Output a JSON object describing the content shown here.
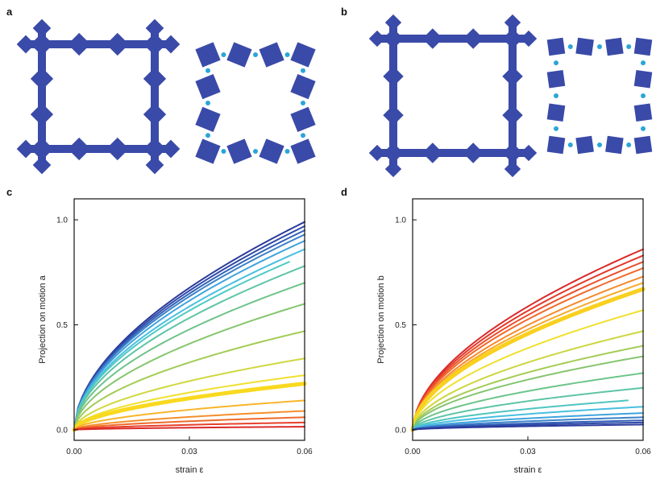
{
  "panels": {
    "a": "a",
    "b": "b",
    "c": "c",
    "d": "d"
  },
  "structure_color": "#3a4aa8",
  "hinge_color": "#2aa6d6",
  "chart_data": [
    {
      "type": "line",
      "panel": "c",
      "title": "",
      "xlabel": "strain  ε",
      "ylabel": "Projection on motion  a",
      "xlim": [
        0.0,
        0.06
      ],
      "ylim": [
        -0.05,
        1.1
      ],
      "xticks": [
        0.0,
        0.03,
        0.06
      ],
      "xtick_labels": [
        "0.00",
        "0.03",
        "0.06"
      ],
      "yticks": [
        0.0,
        0.5,
        1.0
      ],
      "ytick_labels": [
        "0.0",
        "0.5",
        "1.0"
      ],
      "grid": false,
      "series": [
        {
          "color": "#2b3a9b",
          "end_x": 0.06,
          "end_y": 0.99,
          "width": 2
        },
        {
          "color": "#2f4aa8",
          "end_x": 0.06,
          "end_y": 0.97,
          "width": 2
        },
        {
          "color": "#3461b8",
          "end_x": 0.06,
          "end_y": 0.95,
          "width": 2
        },
        {
          "color": "#3b82c9",
          "end_x": 0.06,
          "end_y": 0.93,
          "width": 2
        },
        {
          "color": "#3fa3dc",
          "end_x": 0.06,
          "end_y": 0.9,
          "width": 2
        },
        {
          "color": "#48bfe0",
          "end_x": 0.06,
          "end_y": 0.86,
          "width": 2
        },
        {
          "color": "#4fc9c4",
          "end_x": 0.056,
          "end_y": 0.8,
          "width": 2
        },
        {
          "color": "#5ec4a6",
          "end_x": 0.06,
          "end_y": 0.78,
          "width": 2
        },
        {
          "color": "#6dc48a",
          "end_x": 0.06,
          "end_y": 0.7,
          "width": 2
        },
        {
          "color": "#86c66f",
          "end_x": 0.06,
          "end_y": 0.6,
          "width": 2
        },
        {
          "color": "#a3cc55",
          "end_x": 0.06,
          "end_y": 0.47,
          "width": 2
        },
        {
          "color": "#cfd83f",
          "end_x": 0.06,
          "end_y": 0.34,
          "width": 2
        },
        {
          "color": "#f0e02e",
          "end_x": 0.06,
          "end_y": 0.26,
          "width": 2
        },
        {
          "color": "#f9d91f",
          "end_x": 0.06,
          "end_y": 0.22,
          "width": 5
        },
        {
          "color": "#f8b52a",
          "end_x": 0.06,
          "end_y": 0.14,
          "width": 2
        },
        {
          "color": "#f58f2c",
          "end_x": 0.06,
          "end_y": 0.09,
          "width": 2
        },
        {
          "color": "#ef6a2a",
          "end_x": 0.06,
          "end_y": 0.06,
          "width": 2
        },
        {
          "color": "#e6402b",
          "end_x": 0.06,
          "end_y": 0.035,
          "width": 2
        },
        {
          "color": "#dc2a2a",
          "end_x": 0.06,
          "end_y": 0.015,
          "width": 2
        }
      ]
    },
    {
      "type": "line",
      "panel": "d",
      "title": "",
      "xlabel": "strain  ε",
      "ylabel": "Projection on motion  b",
      "xlim": [
        0.0,
        0.06
      ],
      "ylim": [
        -0.05,
        1.1
      ],
      "xticks": [
        0.0,
        0.03,
        0.06
      ],
      "xtick_labels": [
        "0.00",
        "0.03",
        "0.06"
      ],
      "yticks": [
        0.0,
        0.5,
        1.0
      ],
      "ytick_labels": [
        "0.0",
        "0.5",
        "1.0"
      ],
      "grid": false,
      "series": [
        {
          "color": "#d92a2a",
          "end_x": 0.06,
          "end_y": 0.86,
          "width": 2
        },
        {
          "color": "#e2382a",
          "end_x": 0.06,
          "end_y": 0.83,
          "width": 2
        },
        {
          "color": "#ea4f2b",
          "end_x": 0.06,
          "end_y": 0.8,
          "width": 2
        },
        {
          "color": "#f06a2c",
          "end_x": 0.06,
          "end_y": 0.77,
          "width": 2
        },
        {
          "color": "#f58a2d",
          "end_x": 0.06,
          "end_y": 0.73,
          "width": 2
        },
        {
          "color": "#f8a92b",
          "end_x": 0.06,
          "end_y": 0.7,
          "width": 2
        },
        {
          "color": "#f9d01f",
          "end_x": 0.06,
          "end_y": 0.67,
          "width": 5
        },
        {
          "color": "#f0e02e",
          "end_x": 0.06,
          "end_y": 0.57,
          "width": 2
        },
        {
          "color": "#cdd63f",
          "end_x": 0.06,
          "end_y": 0.47,
          "width": 2
        },
        {
          "color": "#a5cc55",
          "end_x": 0.06,
          "end_y": 0.4,
          "width": 2
        },
        {
          "color": "#86c56f",
          "end_x": 0.06,
          "end_y": 0.35,
          "width": 2
        },
        {
          "color": "#6dc48a",
          "end_x": 0.06,
          "end_y": 0.27,
          "width": 2
        },
        {
          "color": "#5ec4a6",
          "end_x": 0.06,
          "end_y": 0.2,
          "width": 2
        },
        {
          "color": "#4fc5bf",
          "end_x": 0.056,
          "end_y": 0.14,
          "width": 2
        },
        {
          "color": "#48bfe0",
          "end_x": 0.06,
          "end_y": 0.11,
          "width": 2
        },
        {
          "color": "#3fa3dc",
          "end_x": 0.06,
          "end_y": 0.08,
          "width": 2
        },
        {
          "color": "#3b82c9",
          "end_x": 0.06,
          "end_y": 0.06,
          "width": 2
        },
        {
          "color": "#3461b8",
          "end_x": 0.06,
          "end_y": 0.045,
          "width": 2
        },
        {
          "color": "#2f4aa8",
          "end_x": 0.06,
          "end_y": 0.035,
          "width": 2
        },
        {
          "color": "#2b3a9b",
          "end_x": 0.06,
          "end_y": 0.025,
          "width": 2
        }
      ]
    }
  ]
}
